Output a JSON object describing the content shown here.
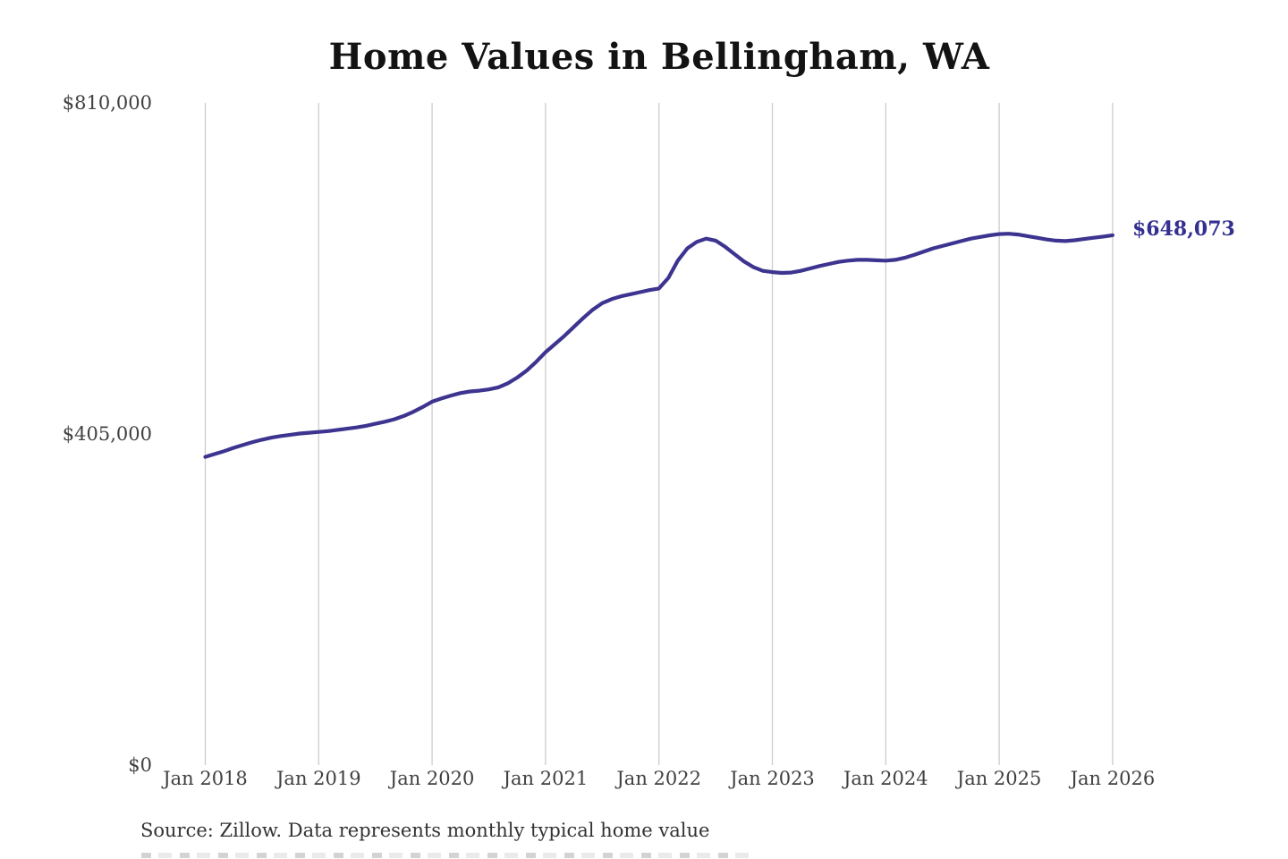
{
  "title": "Home Values in Bellingham, WA",
  "source_note": "Source: Zillow. Data represents monthly typical home value",
  "end_label": "$648,073",
  "colors": {
    "line": "#3d3490",
    "end_label": "#343090",
    "grid": "#cccccc",
    "axis_text": "#404040",
    "title_text": "#131313",
    "source_text": "#333333",
    "background": "#ffffff"
  },
  "chart_data": {
    "type": "line",
    "title": "Home Values in Bellingham, WA",
    "xlabel": "",
    "ylabel": "",
    "x_interval": "monthly",
    "x_start": "Jan 2018",
    "x_end": "Jan 2026",
    "x_tick_labels": [
      "Jan 2018",
      "Jan 2019",
      "Jan 2020",
      "Jan 2021",
      "Jan 2022",
      "Jan 2023",
      "Jan 2024",
      "Jan 2025",
      "Jan 2026"
    ],
    "y_ticks": [
      {
        "value": 0,
        "label": "$0"
      },
      {
        "value": 405000,
        "label": "$405,000"
      },
      {
        "value": 810000,
        "label": "$810,000"
      }
    ],
    "ylim": [
      0,
      810000
    ],
    "grid": "vertical-only",
    "legend": "none",
    "final_value": 648073,
    "final_value_label": "$648,073",
    "series": [
      {
        "name": "Monthly typical home value",
        "color": "#3d3490",
        "values": [
          377000,
          380500,
          384000,
          388000,
          391500,
          395000,
          398000,
          400500,
          402500,
          404000,
          405500,
          406500,
          407500,
          408500,
          410000,
          411500,
          413000,
          415000,
          417500,
          420000,
          423000,
          427000,
          432000,
          438000,
          444500,
          448500,
          452000,
          455000,
          457000,
          458000,
          459500,
          462000,
          467000,
          474000,
          482500,
          493000,
          505000,
          515000,
          525000,
          536000,
          547000,
          557000,
          565000,
          570000,
          573500,
          576000,
          578500,
          581000,
          583000,
          596000,
          617000,
          632000,
          640000,
          644000,
          641500,
          634000,
          625000,
          616000,
          609000,
          604500,
          603000,
          602000,
          602500,
          604500,
          607500,
          610500,
          613000,
          615500,
          617000,
          618000,
          618000,
          617500,
          617000,
          618000,
          620500,
          624000,
          628000,
          632000,
          635000,
          638000,
          641000,
          644000,
          646000,
          648000,
          649500,
          650000,
          649000,
          647000,
          645000,
          643000,
          641500,
          641000,
          642000,
          643500,
          645000,
          646500,
          648073
        ]
      }
    ]
  }
}
